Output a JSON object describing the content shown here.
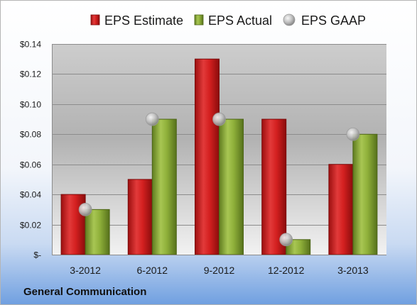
{
  "chart_data": {
    "type": "bar",
    "categories": [
      "3-2012",
      "6-2012",
      "9-2012",
      "12-2012",
      "3-2013"
    ],
    "series": [
      {
        "name": "EPS Estimate",
        "kind": "bar",
        "color": "#d42020",
        "values": [
          0.04,
          0.05,
          0.13,
          0.09,
          0.06
        ]
      },
      {
        "name": "EPS Actual",
        "kind": "bar",
        "color": "#8fb03a",
        "values": [
          0.03,
          0.09,
          0.09,
          0.01,
          0.08
        ]
      },
      {
        "name": "EPS GAAP",
        "kind": "marker",
        "color": "#b8b8b8",
        "values": [
          0.03,
          0.09,
          0.09,
          0.01,
          0.08
        ]
      }
    ],
    "ylim": [
      0,
      0.14
    ],
    "yticks": [
      0,
      0.02,
      0.04,
      0.06,
      0.08,
      0.1,
      0.12,
      0.14
    ],
    "ytick_labels": [
      "$-",
      "$0.02",
      "$0.04",
      "$0.06",
      "$0.08",
      "$0.10",
      "$0.12",
      "$0.14"
    ],
    "grid": true,
    "legend_position": "top"
  },
  "footer": {
    "company": "General Communication"
  }
}
